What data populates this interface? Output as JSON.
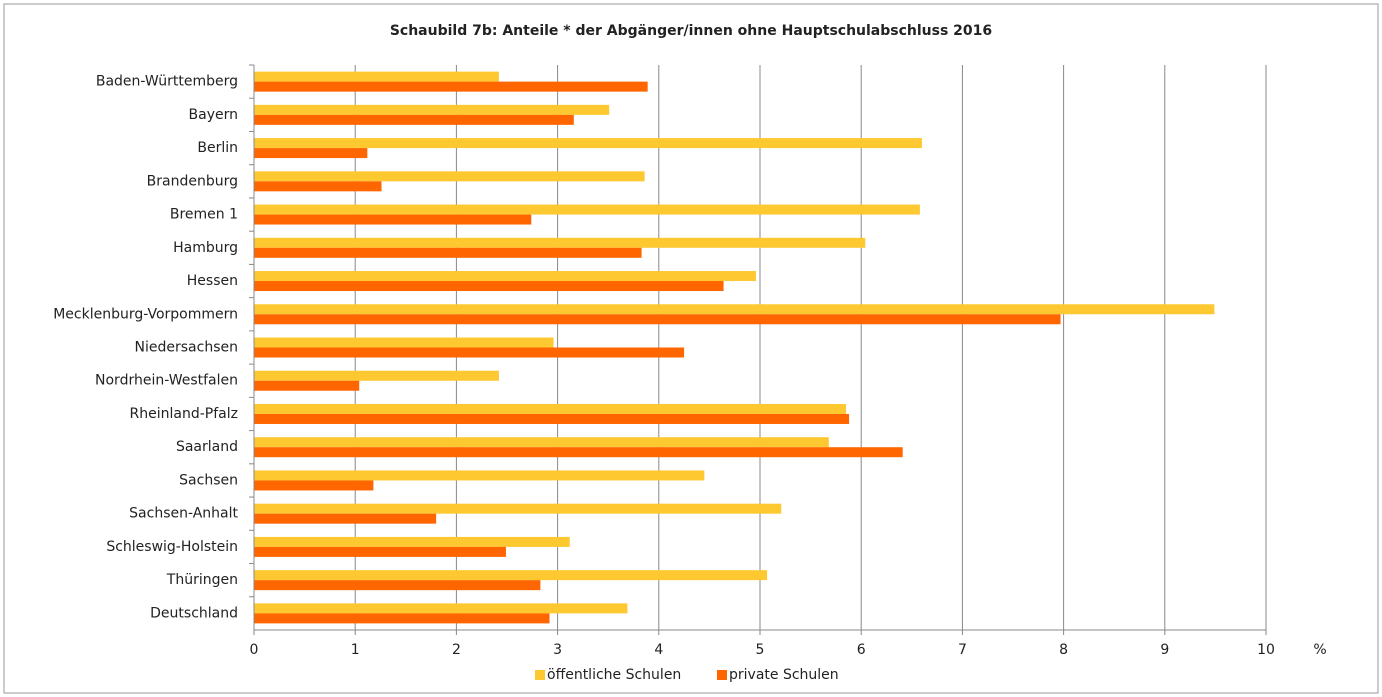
{
  "chart_data": {
    "type": "bar",
    "orientation": "horizontal",
    "title": "Schaubild 7b: Anteile * der Abgänger/innen ohne Hauptschulabschluss 2016",
    "x_axis_label": "%",
    "categories": [
      "Baden-Württemberg",
      "Bayern",
      "Berlin",
      "Brandenburg",
      "Bremen 1",
      "Hamburg",
      "Hessen",
      "Mecklenburg-Vorpommern",
      "Niedersachsen",
      "Nordrhein-Westfalen",
      "Rheinland-Pfalz",
      "Saarland",
      "Sachsen",
      "Sachsen-Anhalt",
      "Schleswig-Holstein",
      "Thüringen",
      "Deutschland"
    ],
    "series": [
      {
        "name": "öffentliche Schulen",
        "color": "#fdc830",
        "values": [
          2.42,
          3.51,
          6.6,
          3.86,
          6.58,
          6.04,
          4.96,
          9.49,
          2.96,
          2.42,
          5.85,
          5.68,
          4.45,
          5.21,
          3.12,
          5.07,
          3.69
        ]
      },
      {
        "name": "private Schulen",
        "color": "#ff6600",
        "values": [
          3.89,
          3.16,
          1.12,
          1.26,
          2.74,
          3.83,
          4.64,
          7.97,
          4.25,
          1.04,
          5.88,
          6.41,
          1.18,
          1.8,
          2.49,
          2.83,
          2.92
        ]
      }
    ],
    "xlim": [
      0,
      10
    ],
    "xticks": [
      0,
      1,
      2,
      3,
      4,
      5,
      6,
      7,
      8,
      9,
      10
    ],
    "grid": true,
    "legend": "bottom"
  }
}
